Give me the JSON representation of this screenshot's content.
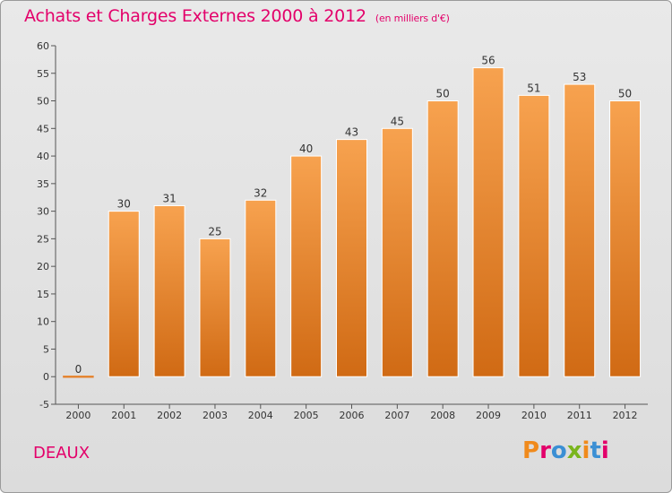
{
  "header": {
    "title": "Achats et Charges Externes 2000 à 2012",
    "subtitle": "(en milliers d'€)"
  },
  "footer": {
    "commune": "DEAUX",
    "logo": "Proxiti"
  },
  "colors": {
    "title": "#e3006a",
    "bar_top": "#f7a24f",
    "bar_bottom": "#d06a14",
    "logo_letters": [
      "#f08a1c",
      "#e3006a",
      "#3b8fd4",
      "#7ab51d",
      "#f08a1c",
      "#3b8fd4",
      "#e3006a"
    ]
  },
  "chart_data": {
    "type": "bar",
    "categories": [
      "2000",
      "2001",
      "2002",
      "2003",
      "2004",
      "2005",
      "2006",
      "2007",
      "2008",
      "2009",
      "2010",
      "2011",
      "2012"
    ],
    "values": [
      0,
      30,
      31,
      25,
      32,
      40,
      43,
      45,
      50,
      56,
      51,
      53,
      50
    ],
    "data_labels": [
      "0",
      "30",
      "31",
      "25",
      "32",
      "40",
      "43",
      "45",
      "50",
      "56",
      "51",
      "53",
      "50"
    ],
    "title": "Achats et Charges Externes 2000 à 2012",
    "subtitle": "(en milliers d'€)",
    "xlabel": "",
    "ylabel": "",
    "ylim": [
      -5,
      60
    ],
    "yticks": [
      -5,
      0,
      5,
      10,
      15,
      20,
      25,
      30,
      35,
      40,
      45,
      50,
      55,
      60
    ],
    "grid": false
  }
}
